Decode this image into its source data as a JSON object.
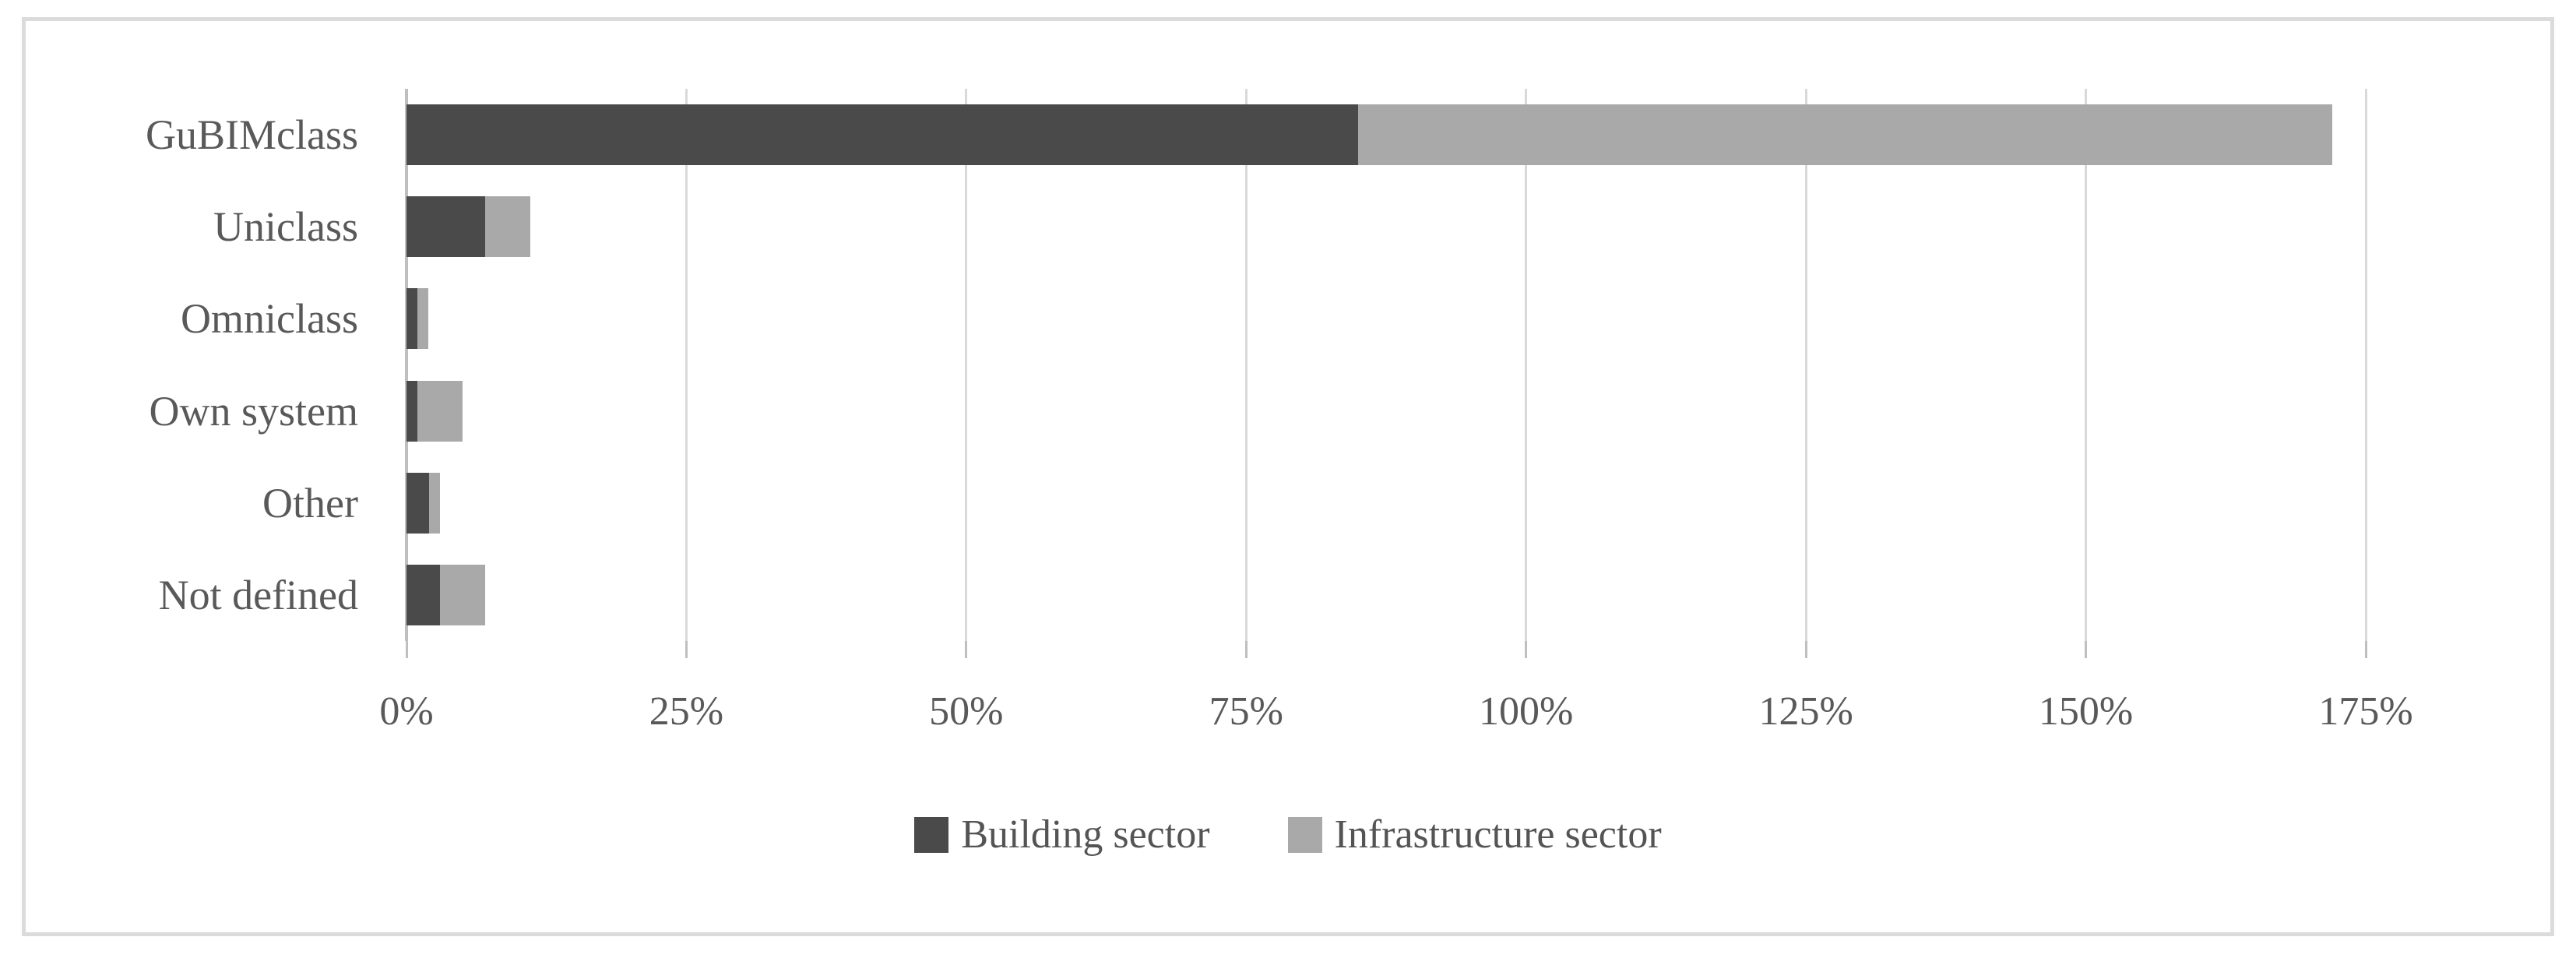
{
  "figure": {
    "background_color": "#FFFFFF",
    "border_color": "#DBDBDB",
    "title": ""
  },
  "chart_data": {
    "type": "bar",
    "orientation": "horizontal",
    "stacked": true,
    "title": "",
    "xlabel": "",
    "ylabel": "",
    "categories": [
      "GuBIMclass",
      "Uniclass",
      "Omniclass",
      "Own system",
      "Other",
      "Not defined"
    ],
    "series": [
      {
        "name": "Building sector",
        "color": "#4A4A4A",
        "values": [
          85,
          7,
          1,
          1,
          2,
          3
        ]
      },
      {
        "name": "Infrastructure sector",
        "color": "#A9A9A9",
        "values": [
          87,
          4,
          1,
          4,
          1,
          4
        ]
      }
    ],
    "x_axis": {
      "min": 0,
      "max": 175,
      "step": 25,
      "unit": "%",
      "tick_labels": [
        "0%",
        "25%",
        "50%",
        "75%",
        "100%",
        "125%",
        "150%",
        "175%"
      ]
    },
    "grid": true,
    "gridline_color": "#D9D9D9",
    "axis_line_color": "#BFBFBF",
    "text_color": "#595959",
    "legend_position": "bottom-center"
  }
}
